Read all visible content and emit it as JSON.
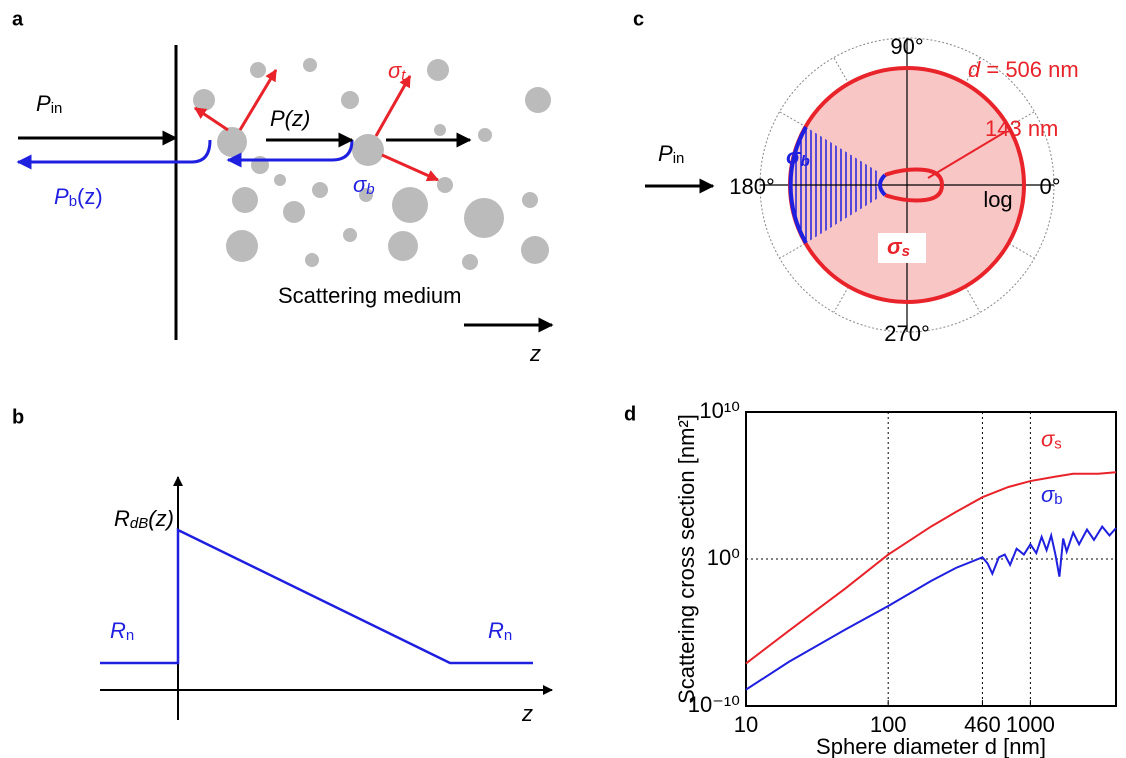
{
  "panel_a": {
    "label": "a",
    "p_in": {
      "main": "P",
      "sub": "in"
    },
    "p_z": "P(z)",
    "sigma_t": {
      "main": "σ",
      "sub": "t"
    },
    "sigma_b": {
      "main": "σ",
      "sub": "b"
    },
    "p_b": {
      "main": "P",
      "sub": "b",
      "tail": "(z)"
    },
    "medium": "Scattering medium",
    "z": "z"
  },
  "panel_b": {
    "label": "b",
    "r_db": {
      "main": "R",
      "sub": "dB",
      "tail": "(z)"
    },
    "r_n_left": {
      "main": "R",
      "sub": "n"
    },
    "r_n_right": {
      "main": "R",
      "sub": "n"
    },
    "z": "z"
  },
  "panel_c": {
    "label": "c",
    "p_in": {
      "main": "P",
      "sub": "in"
    },
    "angles": [
      "90°",
      "180°",
      "270°",
      "0°"
    ],
    "scale": "log",
    "d_label": {
      "main": "d",
      "tail": " = 506 nm"
    },
    "small_label": "143 nm",
    "sigma_b": {
      "main": "σ",
      "sub": "b"
    },
    "sigma_s": {
      "main": "σ",
      "sub": "s"
    }
  },
  "chart_data": {
    "type": "line",
    "panel_label": "d",
    "x_label": "Sphere diameter d [nm]",
    "y_label": "Scattering cross section [nm²]",
    "xscale": "log",
    "yscale": "log",
    "xlim": [
      10,
      4000
    ],
    "ylim": [
      1e-10,
      10000000000.0
    ],
    "xticks": [
      10,
      100,
      460,
      1000
    ],
    "yticks": [
      {
        "value": 1e-10,
        "label": "10⁻¹⁰"
      },
      {
        "value": 1,
        "label": "10⁰"
      },
      {
        "value": 10000000000.0,
        "label": "10¹⁰"
      }
    ],
    "grid": true,
    "series": [
      {
        "name": "σ",
        "sub": "s",
        "color": "#e8232a",
        "x": [
          10,
          20,
          50,
          100,
          200,
          300,
          460,
          700,
          1000,
          1500,
          2000,
          3000,
          4000
        ],
        "values": [
          7.9e-08,
          1.3e-05,
          0.01,
          2,
          160,
          1600,
          16000,
          79000,
          200000,
          400000,
          630000,
          630000,
          790000
        ]
      },
      {
        "name": "σ",
        "sub": "b",
        "color": "#1f1fe0",
        "x": [
          10,
          20,
          50,
          100,
          200,
          300,
          460,
          500,
          540,
          600,
          660,
          720,
          800,
          900,
          1000,
          1100,
          1200,
          1300,
          1400,
          1500,
          1600,
          1700,
          1800,
          2000,
          2200,
          2500,
          2800,
          3200,
          3600,
          4000
        ],
        "values": [
          1.3e-09,
          1e-07,
          1.6e-05,
          0.00063,
          0.032,
          0.25,
          1.3,
          0.5,
          0.1,
          1.3,
          2,
          0.4,
          5,
          2,
          10,
          2.5,
          32,
          4,
          40,
          2,
          0.063,
          25,
          3.2,
          63,
          10,
          100,
          20,
          160,
          40,
          126
        ]
      }
    ]
  }
}
